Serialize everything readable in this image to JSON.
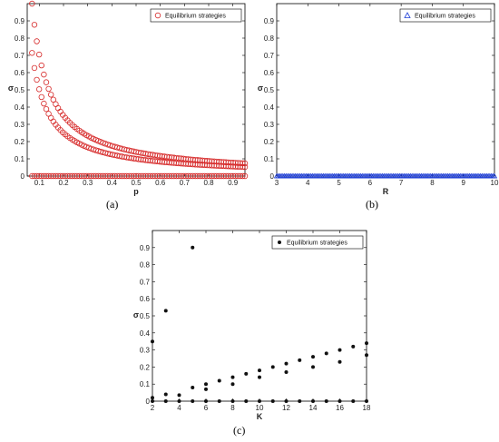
{
  "chart_data": [
    {
      "panel": "(a)",
      "type": "scatter",
      "xlabel": "p",
      "ylabel": "σ",
      "xlim": [
        0.05,
        0.95
      ],
      "ylim": [
        0,
        1
      ],
      "xticks": [
        0.1,
        0.2,
        0.3,
        0.4,
        0.5,
        0.6,
        0.7,
        0.8,
        0.9
      ],
      "yticks": [
        0,
        0.1,
        0.2,
        0.3,
        0.4,
        0.5,
        0.6,
        0.7,
        0.8,
        0.9
      ],
      "legend": "top-right",
      "color": "#d62828",
      "series": [
        {
          "name": "Equilibrium strategies",
          "marker": "circle",
          "curves": [
            {
              "x_start": 0.07,
              "x_end": 0.95,
              "formula": "0.07/x"
            },
            {
              "x_start": 0.07,
              "x_end": 0.95,
              "formula": "0.05/x"
            },
            {
              "x_start": 0.07,
              "x_end": 0.95,
              "formula": "0"
            }
          ]
        }
      ]
    },
    {
      "panel": "(b)",
      "type": "scatter",
      "xlabel": "R",
      "ylabel": "σ",
      "xlim": [
        3,
        10
      ],
      "ylim": [
        0,
        1
      ],
      "xticks": [
        3,
        4,
        5,
        6,
        7,
        8,
        9,
        10
      ],
      "yticks": [
        0,
        0.1,
        0.2,
        0.3,
        0.4,
        0.5,
        0.6,
        0.7,
        0.8,
        0.9
      ],
      "legend": "top-right",
      "color": "#1f3fd6",
      "series": [
        {
          "name": "Equilibrium strategies",
          "marker": "triangle",
          "constant_y": 0,
          "x_range": [
            3,
            10
          ]
        }
      ]
    },
    {
      "panel": "(c)",
      "type": "scatter",
      "xlabel": "K",
      "ylabel": "σ",
      "xlim": [
        2,
        18
      ],
      "ylim": [
        0,
        1
      ],
      "xticks": [
        2,
        4,
        6,
        8,
        10,
        12,
        14,
        16,
        18
      ],
      "yticks": [
        0,
        0.1,
        0.2,
        0.3,
        0.4,
        0.5,
        0.6,
        0.7,
        0.8,
        0.9
      ],
      "legend": "top-right",
      "color": "#111111",
      "series": [
        {
          "name": "Equilibrium strategies",
          "marker": "dot",
          "points": [
            [
              2,
              0
            ],
            [
              2,
              0.02
            ],
            [
              2,
              0.35
            ],
            [
              3,
              0
            ],
            [
              3,
              0.04
            ],
            [
              3,
              0.53
            ],
            [
              4,
              0
            ],
            [
              4,
              0.035
            ],
            [
              5,
              0
            ],
            [
              5,
              0.08
            ],
            [
              5,
              0.9
            ],
            [
              6,
              0
            ],
            [
              6,
              0.07
            ],
            [
              6,
              0.1
            ],
            [
              7,
              0
            ],
            [
              7,
              0.12
            ],
            [
              8,
              0
            ],
            [
              8,
              0.1
            ],
            [
              8,
              0.14
            ],
            [
              9,
              0
            ],
            [
              9,
              0.16
            ],
            [
              10,
              0
            ],
            [
              10,
              0.14
            ],
            [
              10,
              0.18
            ],
            [
              11,
              0
            ],
            [
              11,
              0.2
            ],
            [
              12,
              0
            ],
            [
              12,
              0.17
            ],
            [
              12,
              0.22
            ],
            [
              13,
              0
            ],
            [
              13,
              0.24
            ],
            [
              14,
              0
            ],
            [
              14,
              0.2
            ],
            [
              14,
              0.26
            ],
            [
              15,
              0
            ],
            [
              15,
              0.28
            ],
            [
              16,
              0
            ],
            [
              16,
              0.23
            ],
            [
              16,
              0.3
            ],
            [
              17,
              0
            ],
            [
              17,
              0.32
            ],
            [
              18,
              0
            ],
            [
              18,
              0.27
            ],
            [
              18,
              0.34
            ]
          ]
        }
      ]
    }
  ],
  "labels": {
    "a": "(a)",
    "b": "(b)",
    "c": "(c)"
  }
}
